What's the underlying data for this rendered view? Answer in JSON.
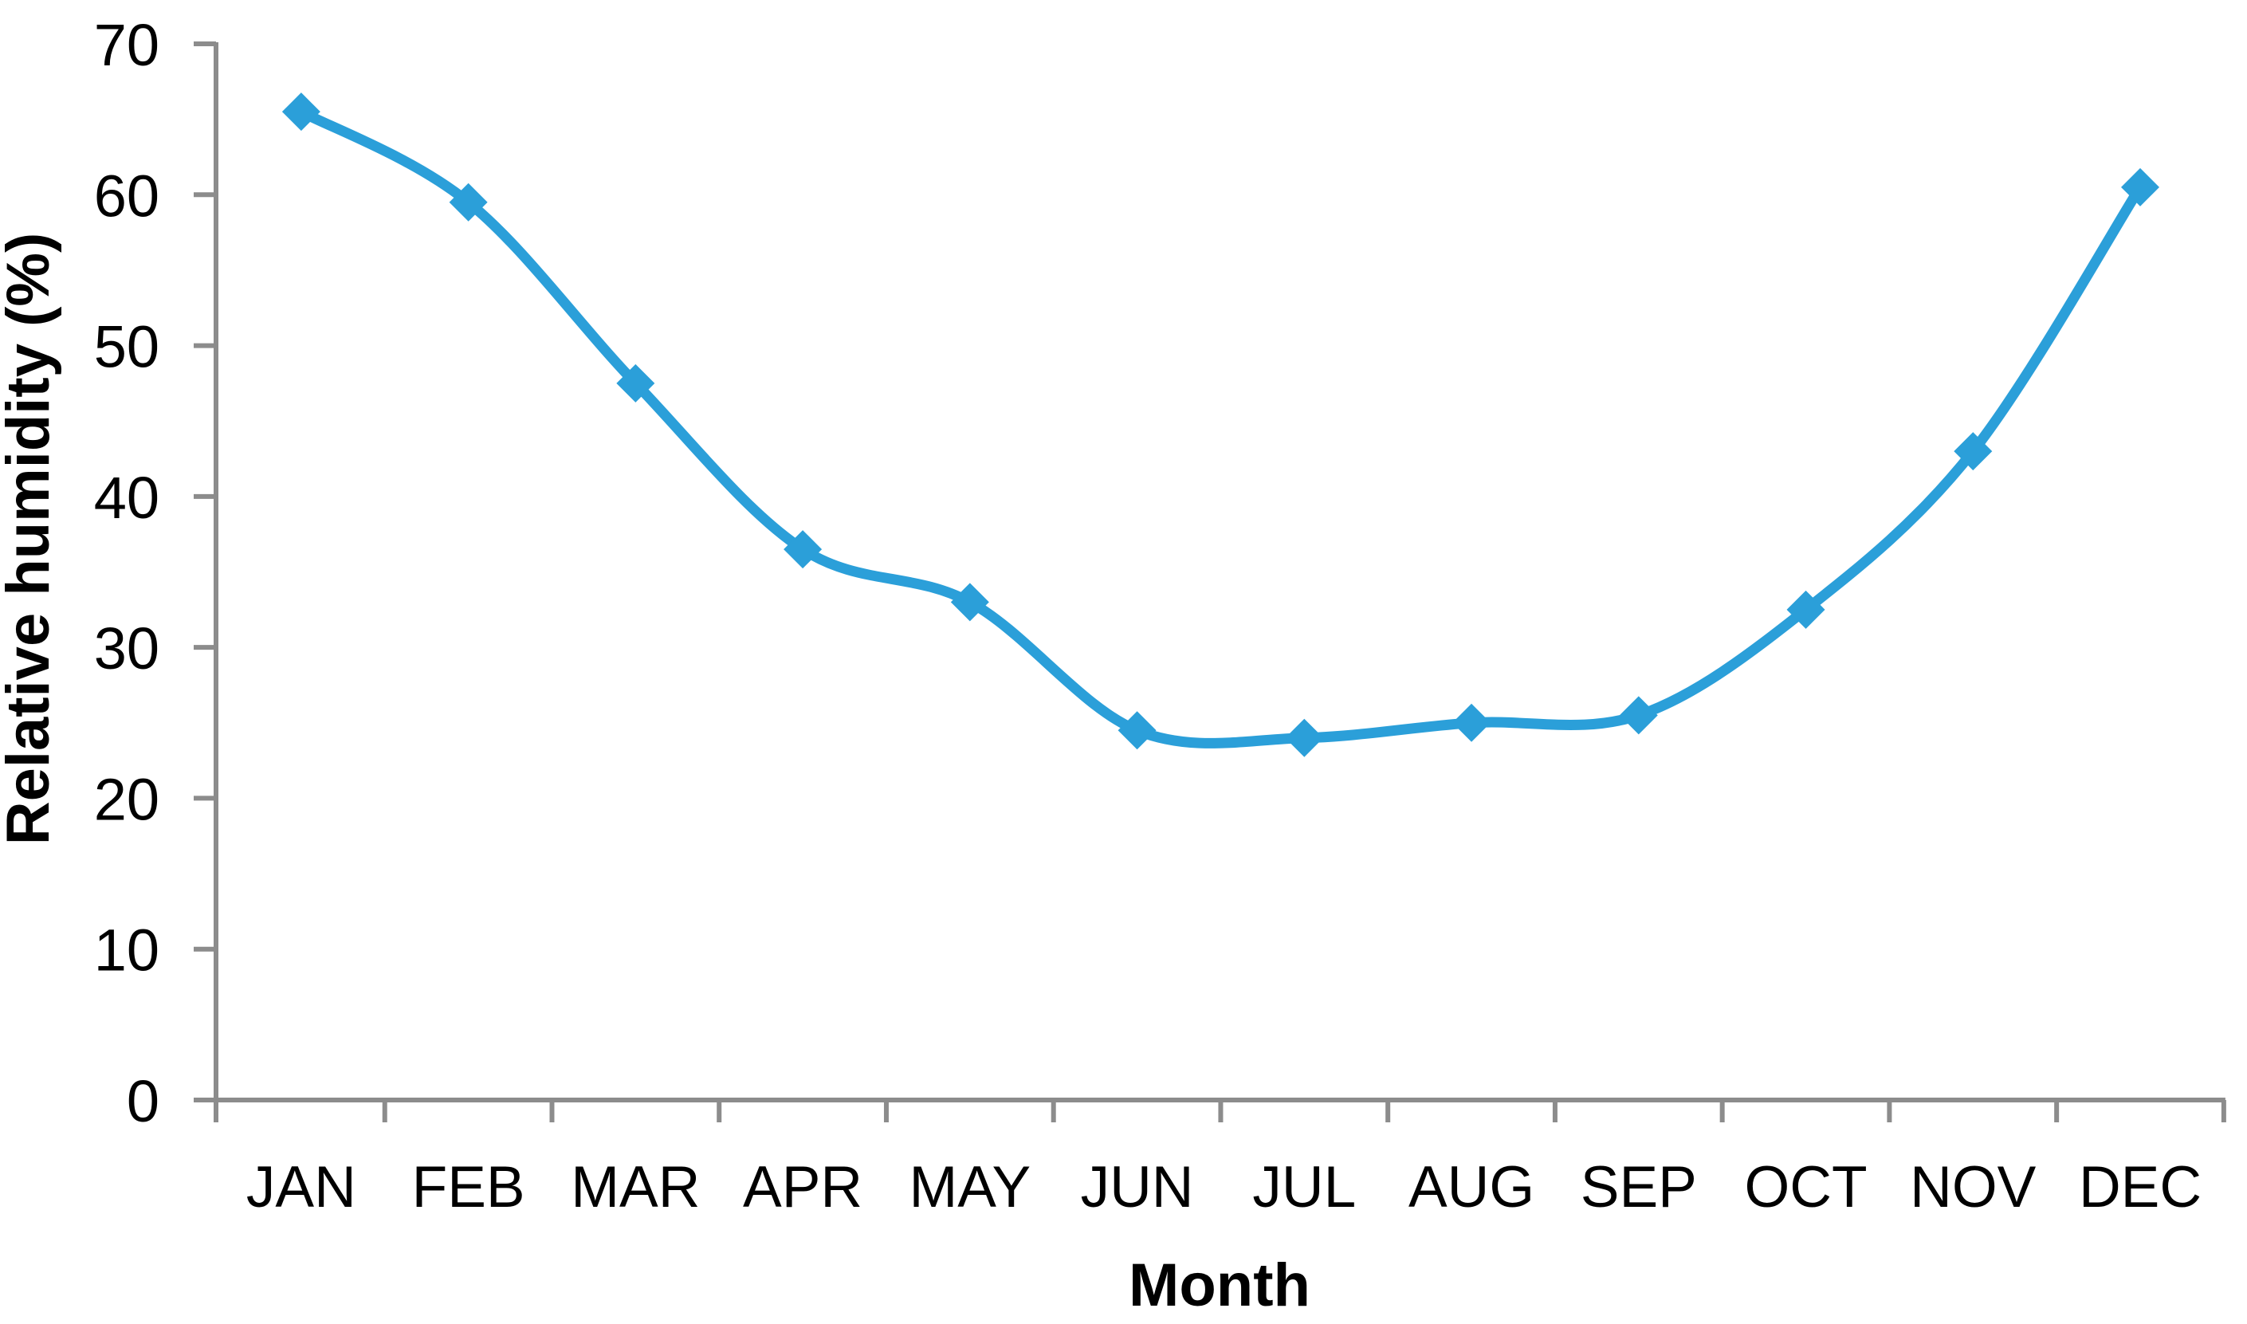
{
  "chart_data": {
    "type": "line",
    "title": "",
    "categories": [
      "JAN",
      "FEB",
      "MAR",
      "APR",
      "MAY",
      "JUN",
      "JUL",
      "AUG",
      "SEP",
      "OCT",
      "NOV",
      "DEC"
    ],
    "series": [
      {
        "name": "Relative humidity",
        "values": [
          65.5,
          59.5,
          47.5,
          36.5,
          33,
          24.5,
          24,
          25,
          25.5,
          32.5,
          43,
          60.5
        ]
      }
    ],
    "xlabel": "Month",
    "ylabel": "Relative humidity (%)",
    "ylim": [
      0,
      70
    ],
    "yticks": [
      0,
      10,
      20,
      30,
      40,
      50,
      60,
      70
    ],
    "grid": false,
    "legend_position": "none",
    "smooth_line": true,
    "marker": "diamond",
    "colors": {
      "line": "#2B9FD9",
      "marker": "#2B9FD9",
      "axis": "#8C8C8C",
      "text": "#000000",
      "background": "#FFFFFF"
    }
  }
}
